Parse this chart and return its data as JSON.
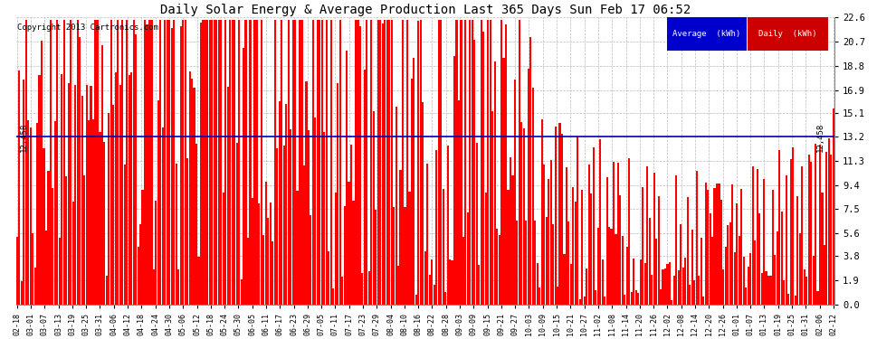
{
  "title": "Daily Solar Energy & Average Production Last 365 Days Sun Feb 17 06:52",
  "copyright": "Copyright 2013 Cartronics.com",
  "average_value": 13.2,
  "average_annotation": "12,458",
  "bar_color": "#ff0000",
  "average_color": "#0000bb",
  "background_color": "#ffffff",
  "plot_bg_color": "#ffffff",
  "ylim": [
    0,
    22.6
  ],
  "yticks": [
    0.0,
    1.9,
    3.8,
    5.6,
    7.5,
    9.4,
    11.3,
    13.2,
    15.1,
    16.9,
    18.8,
    20.7,
    22.6
  ],
  "legend_avg_label": "Average  (kWh)",
  "legend_daily_label": "Daily  (kWh)",
  "legend_avg_bg": "#0000cc",
  "legend_daily_bg": "#cc0000",
  "legend_text_color": "#ffffff",
  "n_days": 365,
  "x_tick_labels": [
    "02-18",
    "03-01",
    "03-07",
    "03-13",
    "03-19",
    "03-25",
    "03-31",
    "04-06",
    "04-12",
    "04-18",
    "04-24",
    "04-30",
    "05-06",
    "05-12",
    "05-18",
    "05-24",
    "05-30",
    "06-05",
    "06-11",
    "06-17",
    "06-23",
    "06-29",
    "07-05",
    "07-11",
    "07-17",
    "07-23",
    "07-29",
    "08-04",
    "08-10",
    "08-16",
    "08-22",
    "08-28",
    "09-03",
    "09-09",
    "09-15",
    "09-21",
    "09-27",
    "10-03",
    "10-09",
    "10-15",
    "10-21",
    "10-27",
    "11-02",
    "11-08",
    "11-14",
    "11-20",
    "11-26",
    "12-02",
    "12-08",
    "12-14",
    "12-20",
    "12-26",
    "01-01",
    "01-07",
    "01-13",
    "01-19",
    "01-25",
    "01-31",
    "02-06",
    "02-12"
  ]
}
